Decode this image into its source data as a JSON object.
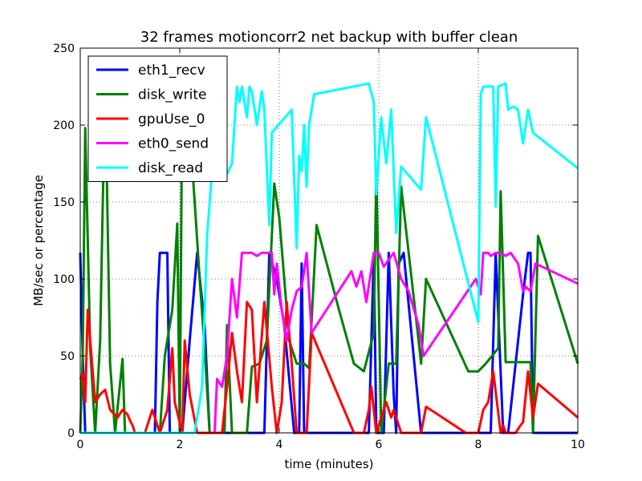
{
  "chart_data": {
    "type": "line",
    "title": "32 frames motioncorr2 net backup with buffer clean",
    "xlabel": "time (minutes)",
    "ylabel": "MB/sec or percentage",
    "xlim": [
      0,
      10
    ],
    "ylim": [
      0,
      250
    ],
    "xticks": [
      "0",
      "2",
      "4",
      "6",
      "8",
      "10"
    ],
    "yticks": [
      "0",
      "50",
      "100",
      "150",
      "200",
      "250"
    ],
    "grid": true,
    "legend_position": "top-left",
    "series": [
      {
        "name": "eth1_recv",
        "color": "#0000ff",
        "points": [
          [
            0.0,
            117
          ],
          [
            0.05,
            50
          ],
          [
            0.1,
            0
          ],
          [
            1.5,
            0
          ],
          [
            1.55,
            85
          ],
          [
            1.6,
            117
          ],
          [
            1.75,
            117
          ],
          [
            1.8,
            0
          ],
          [
            2.05,
            0
          ],
          [
            2.2,
            60
          ],
          [
            2.35,
            117
          ],
          [
            2.5,
            70
          ],
          [
            2.6,
            0
          ],
          [
            3.7,
            0
          ],
          [
            3.8,
            117
          ],
          [
            3.95,
            100
          ],
          [
            4.1,
            70
          ],
          [
            4.3,
            0
          ],
          [
            4.4,
            0
          ],
          [
            4.45,
            110
          ],
          [
            4.5,
            0
          ],
          [
            5.8,
            0
          ],
          [
            5.9,
            117
          ],
          [
            5.95,
            0
          ],
          [
            6.1,
            0
          ],
          [
            6.2,
            117
          ],
          [
            6.3,
            25
          ],
          [
            6.35,
            0
          ],
          [
            6.4,
            110
          ],
          [
            6.5,
            117
          ],
          [
            6.85,
            0
          ],
          [
            8.25,
            0
          ],
          [
            8.35,
            117
          ],
          [
            8.5,
            0
          ],
          [
            8.6,
            0
          ],
          [
            8.9,
            90
          ],
          [
            9.0,
            117
          ],
          [
            9.05,
            117
          ],
          [
            9.1,
            0
          ],
          [
            10.0,
            0
          ]
        ]
      },
      {
        "name": "disk_write",
        "color": "#008000",
        "points": [
          [
            0.0,
            0
          ],
          [
            0.05,
            50
          ],
          [
            0.1,
            198
          ],
          [
            0.2,
            55
          ],
          [
            0.3,
            0
          ],
          [
            0.4,
            60
          ],
          [
            0.5,
            230
          ],
          [
            0.6,
            45
          ],
          [
            0.7,
            0
          ],
          [
            0.85,
            48
          ],
          [
            0.9,
            0
          ],
          [
            1.55,
            0
          ],
          [
            1.6,
            0
          ],
          [
            1.7,
            50
          ],
          [
            1.85,
            80
          ],
          [
            1.95,
            136
          ],
          [
            2.0,
            0
          ],
          [
            2.05,
            225
          ],
          [
            2.15,
            220
          ],
          [
            2.3,
            150
          ],
          [
            2.4,
            100
          ],
          [
            2.5,
            55
          ],
          [
            2.6,
            0
          ],
          [
            2.9,
            0
          ],
          [
            2.95,
            70
          ],
          [
            3.05,
            0
          ],
          [
            3.35,
            0
          ],
          [
            3.45,
            43
          ],
          [
            3.6,
            45
          ],
          [
            3.75,
            60
          ],
          [
            3.9,
            162
          ],
          [
            4.0,
            140
          ],
          [
            4.2,
            60
          ],
          [
            4.35,
            45
          ],
          [
            4.5,
            45
          ],
          [
            4.6,
            42
          ],
          [
            4.75,
            135
          ],
          [
            5.2,
            80
          ],
          [
            5.5,
            45
          ],
          [
            5.7,
            40
          ],
          [
            5.9,
            65
          ],
          [
            5.95,
            170
          ],
          [
            6.05,
            0
          ],
          [
            6.2,
            45
          ],
          [
            6.35,
            45
          ],
          [
            6.45,
            160
          ],
          [
            6.8,
            60
          ],
          [
            6.85,
            45
          ],
          [
            6.95,
            100
          ],
          [
            7.8,
            40
          ],
          [
            8.0,
            40
          ],
          [
            8.15,
            45
          ],
          [
            8.4,
            55
          ],
          [
            8.45,
            157
          ],
          [
            8.55,
            46
          ],
          [
            9.05,
            46
          ],
          [
            9.1,
            0
          ],
          [
            9.2,
            128
          ],
          [
            10.0,
            45
          ]
        ]
      },
      {
        "name": "gpuUse_0",
        "color": "#ff0000",
        "points": [
          [
            0.0,
            35
          ],
          [
            0.05,
            38
          ],
          [
            0.1,
            20
          ],
          [
            0.15,
            80
          ],
          [
            0.3,
            20
          ],
          [
            0.4,
            25
          ],
          [
            0.5,
            28
          ],
          [
            0.6,
            15
          ],
          [
            0.75,
            10
          ],
          [
            0.85,
            15
          ],
          [
            0.95,
            12
          ],
          [
            1.0,
            8
          ],
          [
            1.05,
            5
          ],
          [
            1.1,
            0
          ],
          [
            1.3,
            0
          ],
          [
            1.45,
            15
          ],
          [
            1.55,
            5
          ],
          [
            1.6,
            0
          ],
          [
            1.75,
            15
          ],
          [
            1.85,
            55
          ],
          [
            1.9,
            20
          ],
          [
            2.05,
            0
          ],
          [
            2.1,
            60
          ],
          [
            2.2,
            25
          ],
          [
            2.35,
            0
          ],
          [
            2.6,
            0
          ],
          [
            2.85,
            0
          ],
          [
            2.95,
            30
          ],
          [
            3.05,
            65
          ],
          [
            3.15,
            40
          ],
          [
            3.25,
            20
          ],
          [
            3.35,
            85
          ],
          [
            3.45,
            80
          ],
          [
            3.55,
            20
          ],
          [
            3.7,
            85
          ],
          [
            3.85,
            30
          ],
          [
            3.95,
            0
          ],
          [
            4.05,
            20
          ],
          [
            4.15,
            85
          ],
          [
            4.25,
            45
          ],
          [
            4.35,
            0
          ],
          [
            4.55,
            0
          ],
          [
            4.65,
            65
          ],
          [
            5.5,
            0
          ],
          [
            5.7,
            0
          ],
          [
            5.8,
            15
          ],
          [
            5.85,
            30
          ],
          [
            5.95,
            0
          ],
          [
            6.15,
            20
          ],
          [
            6.25,
            10
          ],
          [
            6.3,
            15
          ],
          [
            6.4,
            5
          ],
          [
            6.45,
            0
          ],
          [
            6.85,
            0
          ],
          [
            6.95,
            17
          ],
          [
            7.75,
            0
          ],
          [
            8.0,
            0
          ],
          [
            8.1,
            15
          ],
          [
            8.2,
            20
          ],
          [
            8.3,
            40
          ],
          [
            8.45,
            0
          ],
          [
            8.5,
            5
          ],
          [
            8.55,
            0
          ],
          [
            8.75,
            0
          ],
          [
            8.85,
            5
          ],
          [
            8.9,
            7
          ],
          [
            9.0,
            40
          ],
          [
            9.1,
            10
          ],
          [
            9.2,
            32
          ],
          [
            10.0,
            10
          ]
        ]
      },
      {
        "name": "eth0_send",
        "color": "#ff00ff",
        "points": [
          [
            2.7,
            0
          ],
          [
            2.75,
            35
          ],
          [
            2.85,
            30
          ],
          [
            2.95,
            50
          ],
          [
            3.05,
            100
          ],
          [
            3.15,
            75
          ],
          [
            3.25,
            117
          ],
          [
            3.35,
            117
          ],
          [
            3.45,
            117
          ],
          [
            3.55,
            115
          ],
          [
            3.65,
            117
          ],
          [
            3.75,
            117
          ],
          [
            3.85,
            117
          ],
          [
            3.9,
            90
          ],
          [
            3.95,
            110
          ],
          [
            4.05,
            80
          ],
          [
            4.15,
            60
          ],
          [
            4.25,
            80
          ],
          [
            4.35,
            92
          ],
          [
            4.45,
            95
          ],
          [
            4.5,
            105
          ],
          [
            4.55,
            117
          ],
          [
            4.65,
            65
          ],
          [
            5.45,
            105
          ],
          [
            5.55,
            95
          ],
          [
            5.65,
            105
          ],
          [
            5.75,
            85
          ],
          [
            5.9,
            117
          ],
          [
            6.0,
            117
          ],
          [
            6.1,
            108
          ],
          [
            6.3,
            117
          ],
          [
            6.45,
            100
          ],
          [
            6.6,
            92
          ],
          [
            6.8,
            70
          ],
          [
            6.9,
            50
          ],
          [
            7.95,
            100
          ],
          [
            8.05,
            90
          ],
          [
            8.1,
            117
          ],
          [
            8.2,
            117
          ],
          [
            8.25,
            115
          ],
          [
            8.35,
            117
          ],
          [
            8.45,
            117
          ],
          [
            8.55,
            115
          ],
          [
            8.65,
            117
          ],
          [
            8.8,
            110
          ],
          [
            8.9,
            92
          ],
          [
            8.95,
            95
          ],
          [
            9.05,
            92
          ],
          [
            9.15,
            110
          ],
          [
            10.0,
            97
          ]
        ]
      },
      {
        "name": "disk_read",
        "color": "#00ffff",
        "points": [
          [
            0.0,
            0
          ],
          [
            2.3,
            0
          ],
          [
            2.45,
            30
          ],
          [
            2.55,
            128
          ],
          [
            2.65,
            170
          ],
          [
            2.75,
            175
          ],
          [
            2.85,
            195
          ],
          [
            2.95,
            168
          ],
          [
            3.05,
            175
          ],
          [
            3.15,
            225
          ],
          [
            3.2,
            215
          ],
          [
            3.25,
            225
          ],
          [
            3.35,
            205
          ],
          [
            3.4,
            225
          ],
          [
            3.45,
            222
          ],
          [
            3.55,
            200
          ],
          [
            3.65,
            222
          ],
          [
            3.7,
            210
          ],
          [
            3.8,
            135
          ],
          [
            3.85,
            195
          ],
          [
            4.25,
            210
          ],
          [
            4.35,
            120
          ],
          [
            4.4,
            180
          ],
          [
            4.45,
            170
          ],
          [
            4.5,
            200
          ],
          [
            4.55,
            160
          ],
          [
            4.6,
            200
          ],
          [
            4.7,
            220
          ],
          [
            5.8,
            227
          ],
          [
            5.9,
            215
          ],
          [
            5.95,
            155
          ],
          [
            6.05,
            205
          ],
          [
            6.15,
            175
          ],
          [
            6.25,
            210
          ],
          [
            6.35,
            130
          ],
          [
            6.45,
            173
          ],
          [
            6.85,
            158
          ],
          [
            6.95,
            205
          ],
          [
            8.0,
            72
          ],
          [
            8.05,
            220
          ],
          [
            8.1,
            225
          ],
          [
            8.3,
            225
          ],
          [
            8.35,
            147
          ],
          [
            8.4,
            225
          ],
          [
            8.55,
            227
          ],
          [
            8.6,
            210
          ],
          [
            8.7,
            212
          ],
          [
            8.8,
            210
          ],
          [
            8.9,
            188
          ],
          [
            9.0,
            210
          ],
          [
            9.1,
            195
          ],
          [
            10.0,
            172
          ]
        ]
      }
    ]
  }
}
